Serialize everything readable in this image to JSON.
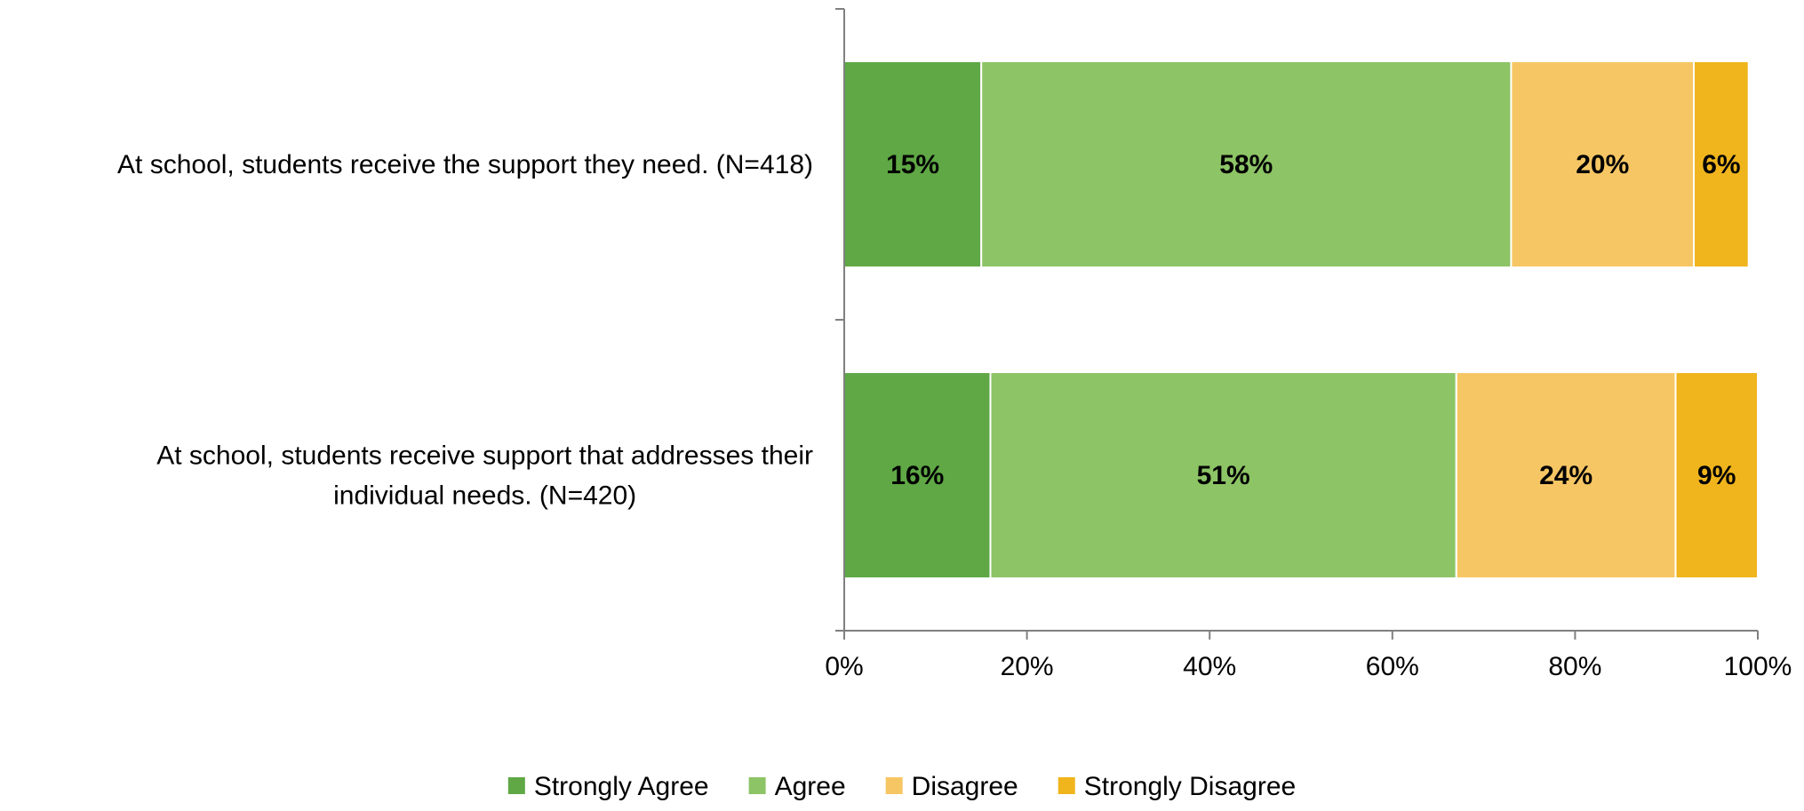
{
  "chart_data": {
    "type": "bar",
    "orientation": "horizontal",
    "stacked": true,
    "categories": [
      "At school, students receive the support they need. (N=418)",
      "At school, students receive support that addresses their individual needs. (N=420)"
    ],
    "category_lines": [
      [
        "At school, students receive the support they need. (N=418)"
      ],
      [
        "At school, students receive support that addresses their",
        "individual needs. (N=420)"
      ]
    ],
    "series": [
      {
        "name": "Strongly Agree",
        "color": "#5fa845",
        "values": [
          15,
          16
        ],
        "labels": [
          "15%",
          "16%"
        ]
      },
      {
        "name": "Agree",
        "color": "#8dc466",
        "values": [
          58,
          51
        ],
        "labels": [
          "58%",
          "51%"
        ]
      },
      {
        "name": "Disagree",
        "color": "#f7c664",
        "values": [
          20,
          24
        ],
        "labels": [
          "20%",
          "24%"
        ]
      },
      {
        "name": "Strongly Disagree",
        "color": "#f0b51d",
        "values": [
          6,
          9
        ],
        "labels": [
          "6%",
          "9%"
        ]
      }
    ],
    "xlim": [
      0,
      100
    ],
    "xticks": [
      0,
      20,
      40,
      60,
      80,
      100
    ],
    "xtick_labels": [
      "0%",
      "20%",
      "40%",
      "60%",
      "80%",
      "100%"
    ],
    "legend_position": "bottom",
    "grid": false,
    "title": "",
    "xlabel": "",
    "ylabel": ""
  }
}
